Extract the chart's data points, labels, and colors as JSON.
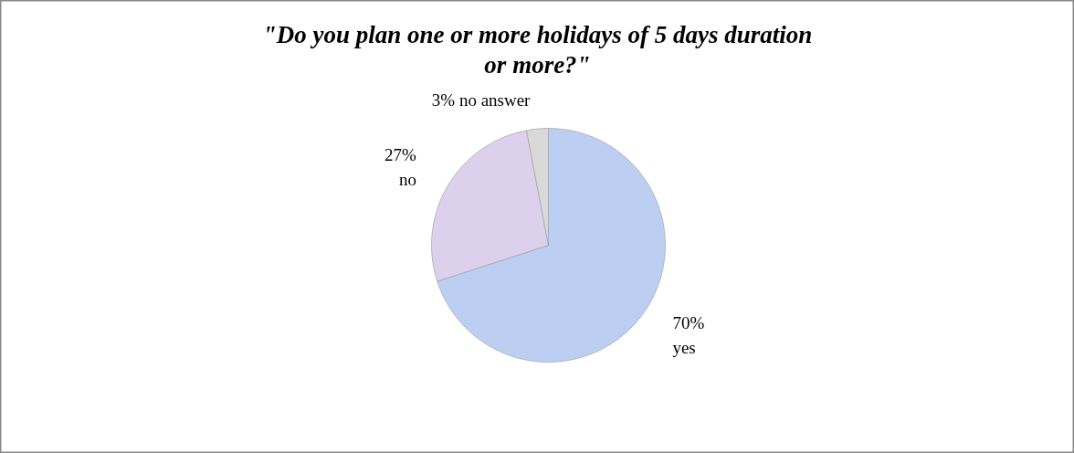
{
  "chart_data": {
    "type": "pie",
    "title": "\"Do you plan one or more holidays of 5 days duration or more?\"",
    "categories": [
      "yes",
      "no",
      "no answer"
    ],
    "values": [
      70,
      27,
      3
    ],
    "colors": [
      "#bccff2",
      "#ddd0ec",
      "#d9d9d9"
    ],
    "value_labels": [
      "70%",
      "27%",
      "3%"
    ]
  }
}
